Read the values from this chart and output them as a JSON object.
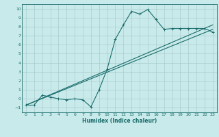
{
  "xlabel": "Humidex (Indice chaleur)",
  "bg_color": "#c8eaea",
  "grid_color": "#aacccc",
  "line_color": "#1a6b6b",
  "xlim": [
    -0.5,
    23.5
  ],
  "ylim": [
    -1.5,
    10.5
  ],
  "xticks": [
    0,
    1,
    2,
    3,
    4,
    5,
    6,
    7,
    8,
    9,
    10,
    11,
    12,
    13,
    14,
    15,
    16,
    17,
    18,
    19,
    20,
    21,
    22,
    23
  ],
  "yticks": [
    -1,
    0,
    1,
    2,
    3,
    4,
    5,
    6,
    7,
    8,
    9,
    10
  ],
  "curve1_x": [
    0,
    1,
    2,
    3,
    4,
    5,
    6,
    7,
    8,
    9,
    10,
    11,
    12,
    13,
    14,
    15,
    16,
    17,
    18,
    19,
    20,
    21,
    22,
    23
  ],
  "curve1_y": [
    -0.7,
    -0.7,
    0.4,
    0.2,
    0.0,
    -0.1,
    0.0,
    -0.1,
    -0.9,
    1.0,
    3.3,
    6.6,
    8.2,
    9.7,
    9.4,
    9.9,
    8.8,
    7.7,
    7.8,
    7.8,
    7.8,
    7.8,
    7.8,
    7.4
  ],
  "curve2_x": [
    0,
    23
  ],
  "curve2_y": [
    -0.7,
    7.7
  ],
  "curve3_x": [
    0,
    23
  ],
  "curve3_y": [
    -0.7,
    8.2
  ]
}
